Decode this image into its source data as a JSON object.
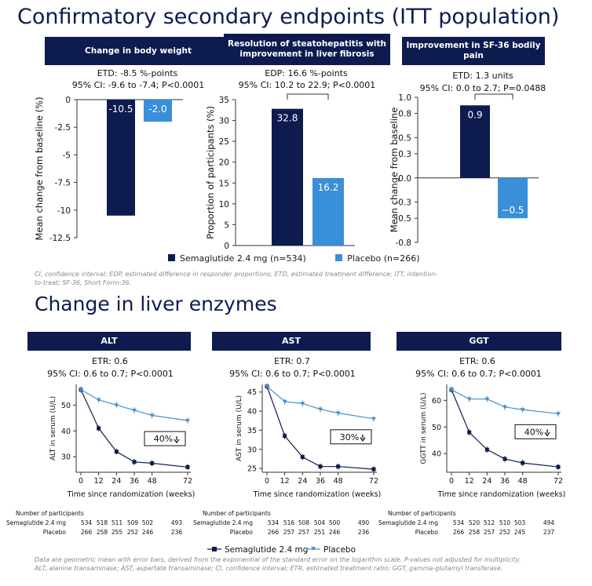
{
  "main_title": "Confirmatory secondary endpoints (ITT population)",
  "section2_title": "Change in liver enzymes",
  "legend_top": {
    "sema": "Semaglutide 2.4 mg (n=534)",
    "placebo": "Placebo (n=266)"
  },
  "footnote_top": "CI, confidence interval; EDP, estimated difference in responder proportions; ETD, estimated treatment difference; ITT, intention-to-treat; SF-36, Short Form-36.",
  "legend_bottom": {
    "sema": "Semaglutide 2.4 mg",
    "placebo": "Placebo"
  },
  "footnote_bottom_1": "Data are geometric mean with error bars, derived from the exponential of the standard error on the logarithm scale. P-values not adjusted for multiplicity.",
  "footnote_bottom_2": "ALT, alanine transaminase; AST, aspartate transaminase; CI, confidence interval; ETR, estimated treatment ratio; GGT, gamma-glutamyl transferase.",
  "colors": {
    "navy": "#0d1b4f",
    "blue": "#3a8fd9",
    "placebo_line": "#4a90c8"
  },
  "panels_top": [
    {
      "header": "Change in body weight",
      "stat1": "ETD: -8.5 %-points",
      "stat2": "95% CI: -9.6 to -7.4; P<0.0001"
    },
    {
      "header": "Resolution of steatohepatitis with improvement in liver fibrosis",
      "stat1": "EDP: 16.6 %-points",
      "stat2": "95% CI: 10.2 to 22.9; P<0.0001"
    },
    {
      "header": "Improvement in SF-36 bodily pain",
      "stat1": "ETD: 1.3 units",
      "stat2": "95% CI: 0.0 to 2.7; P=0.0488"
    }
  ],
  "panels_bottom": [
    {
      "header": "ALT",
      "stat1": "ETR: 0.6",
      "stat2": "95% CI: 0.6 to 0.7; P<0.0001"
    },
    {
      "header": "AST",
      "stat1": "ETR: 0.7",
      "stat2": "95% CI: 0.6 to 0.7; P<0.0001"
    },
    {
      "header": "GGT",
      "stat1": "ETR: 0.6",
      "stat2": "95% CI: 0.6 to 0.7; P<0.0001"
    }
  ],
  "participants": {
    "title": "Number of participants",
    "sema_label": "Semaglutide 2.4 mg",
    "placebo_label": "Placebo",
    "tables": [
      {
        "sema": [
          "534",
          "518",
          "511",
          "509",
          "502",
          "493"
        ],
        "placebo": [
          "266",
          "258",
          "255",
          "252",
          "246",
          "236"
        ]
      },
      {
        "sema": [
          "534",
          "516",
          "508",
          "504",
          "500",
          "490"
        ],
        "placebo": [
          "266",
          "257",
          "257",
          "251",
          "246",
          "236"
        ]
      },
      {
        "sema": [
          "534",
          "520",
          "512",
          "510",
          "503",
          "494"
        ],
        "placebo": [
          "266",
          "258",
          "257",
          "252",
          "245",
          "237"
        ]
      }
    ]
  },
  "chart_data": [
    {
      "type": "bar",
      "title": "Change in body weight",
      "ylabel": "Mean change from baseline (%)",
      "ylim": [
        -12.5,
        0
      ],
      "yticks": [
        0,
        -2.5,
        -5,
        -7.5,
        -10,
        -12.5
      ],
      "ytick_labels": [
        "0",
        "-2.5",
        "-5",
        "-7.5",
        "-10",
        "-12.5"
      ],
      "series": [
        {
          "name": "Semaglutide 2.4 mg",
          "value": -10.5,
          "label": "-10.5"
        },
        {
          "name": "Placebo",
          "value": -2.0,
          "label": "-2.0"
        }
      ]
    },
    {
      "type": "bar",
      "title": "Resolution of steatohepatitis with improvement in liver fibrosis",
      "ylabel": "Proportion of participants (%)",
      "ylim": [
        0,
        35
      ],
      "yticks": [
        0,
        5,
        10,
        15,
        20,
        25,
        30,
        35
      ],
      "ytick_labels": [
        "0",
        "5",
        "10",
        "15",
        "20",
        "25",
        "30",
        "35"
      ],
      "series": [
        {
          "name": "Semaglutide 2.4 mg",
          "value": 32.8,
          "label": "32.8"
        },
        {
          "name": "Placebo",
          "value": 16.2,
          "label": "16.2"
        }
      ]
    },
    {
      "type": "bar",
      "title": "Improvement in SF-36 bodily pain",
      "ylabel": "Mean change from baseline",
      "ylim": [
        -0.8,
        1.0
      ],
      "yticks": [
        1.0,
        0.8,
        0.5,
        0.3,
        0.0,
        -0.3,
        -0.5,
        -0.8
      ],
      "ytick_labels": [
        "1.0",
        "0.8",
        "0.5",
        "0.3",
        "0.0",
        "-0.3",
        "-0.5",
        "-0.8"
      ],
      "series": [
        {
          "name": "Semaglutide 2.4 mg",
          "value": 0.9,
          "label": "0.9"
        },
        {
          "name": "Placebo",
          "value": -0.5,
          "label": "−0.5"
        }
      ]
    },
    {
      "type": "line",
      "title": "ALT",
      "ylabel": "ALT in serum (U/L)",
      "xlabel": "Time since randomization (weeks)",
      "x": [
        0,
        12,
        24,
        36,
        48,
        72
      ],
      "xlim": [
        0,
        72
      ],
      "ylim": [
        24,
        58
      ],
      "yticks": [
        30,
        40,
        50
      ],
      "series": [
        {
          "name": "Semaglutide 2.4 mg",
          "values": [
            56,
            41,
            32,
            28,
            27.5,
            26
          ]
        },
        {
          "name": "Placebo",
          "values": [
            56,
            52,
            50,
            48,
            46,
            44
          ]
        }
      ],
      "annotation": "40%"
    },
    {
      "type": "line",
      "title": "AST",
      "ylabel": "AST in serum (U/L)",
      "xlabel": "Time since randomization (weeks)",
      "x": [
        0,
        12,
        24,
        36,
        48,
        72
      ],
      "xlim": [
        0,
        72
      ],
      "ylim": [
        24,
        47
      ],
      "yticks": [
        25,
        30,
        35,
        40,
        45
      ],
      "series": [
        {
          "name": "Semaglutide 2.4 mg",
          "values": [
            46.5,
            33.5,
            28,
            25.5,
            25.5,
            24.8
          ]
        },
        {
          "name": "Placebo",
          "values": [
            46.5,
            42.5,
            42,
            40.5,
            39.5,
            38
          ]
        }
      ],
      "annotation": "30%"
    },
    {
      "type": "line",
      "title": "GGT",
      "ylabel": "GGTT in serum (U/L)",
      "xlabel": "Time since randomization (weeks)",
      "x": [
        0,
        12,
        24,
        36,
        48,
        72
      ],
      "xlim": [
        0,
        72
      ],
      "ylim": [
        33,
        66
      ],
      "yticks": [
        40,
        50,
        60
      ],
      "series": [
        {
          "name": "Semaglutide 2.4 mg",
          "values": [
            64,
            48,
            41.5,
            38,
            36.5,
            35
          ]
        },
        {
          "name": "Placebo",
          "values": [
            64,
            60.5,
            60.5,
            57.5,
            56.5,
            55
          ]
        }
      ],
      "annotation": "40%"
    }
  ]
}
